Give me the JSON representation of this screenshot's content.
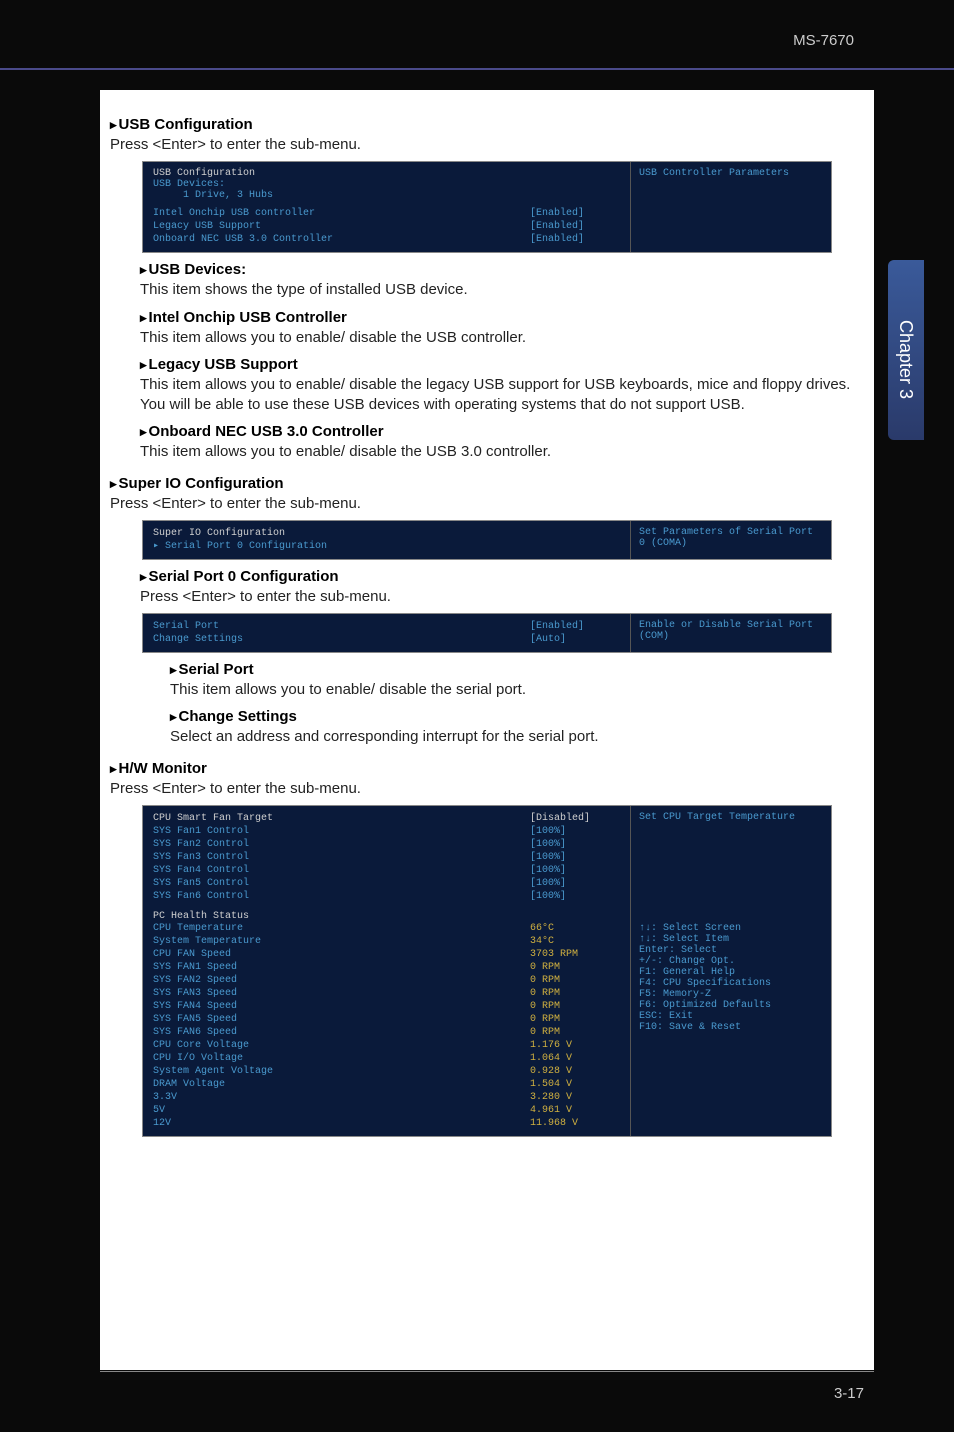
{
  "header": {
    "model": "MS-7670"
  },
  "sideTab": "Chapter 3",
  "footer": "3-17",
  "sections": {
    "usbConfig": {
      "title": "USB Configuration",
      "desc": "Press <Enter> to enter the sub-menu.",
      "bios": {
        "heading": "USB Configuration",
        "devicesLabel": "USB Devices:",
        "devicesValue": "1 Drive, 3 Hubs",
        "rows": [
          {
            "label": "Intel Onchip USB controller",
            "value": "[Enabled]"
          },
          {
            "label": "Legacy USB Support",
            "value": "[Enabled]"
          },
          {
            "label": "Onboard NEC USB 3.0 Controller",
            "value": "[Enabled]"
          }
        ],
        "help": "USB Controller Parameters"
      },
      "subs": {
        "usbDevices": {
          "title": "USB Devices:",
          "desc": "This item shows the type of installed USB device."
        },
        "intelOnchip": {
          "title": "Intel Onchip USB Controller",
          "desc": "This item allows you to enable/ disable the USB controller."
        },
        "legacy": {
          "title": "Legacy USB Support",
          "desc": "This item allows you to enable/ disable the legacy USB support for USB keyboards, mice and floppy drives. You will be able to use these USB devices with operating systems that do not support USB."
        },
        "nec": {
          "title": "Onboard NEC USB 3.0 Controller",
          "desc": "This item allows you to enable/ disable the USB 3.0 controller."
        }
      }
    },
    "superIO": {
      "title": "Super IO Configuration",
      "desc": "Press <Enter> to enter the sub-menu.",
      "bios": {
        "rows": [
          {
            "label": "Super IO Configuration",
            "value": "",
            "white": true
          },
          {
            "label": "Serial Port 0 Configuration",
            "value": "",
            "cyan": true,
            "arrow": true
          }
        ],
        "help": "Set Parameters of Serial Port 0 (COMA)"
      },
      "serialPort0": {
        "title": "Serial Port 0 Configuration",
        "desc": "Press <Enter> to enter the sub-menu.",
        "bios": {
          "rows": [
            {
              "label": "Serial Port",
              "value": "[Enabled]"
            },
            {
              "label": "Change Settings",
              "value": "[Auto]"
            }
          ],
          "help": "Enable or Disable Serial Port (COM)"
        },
        "subs": {
          "serialPort": {
            "title": "Serial Port",
            "desc": "This item allows you to enable/ disable the serial port."
          },
          "changeSettings": {
            "title": "Change Settings",
            "desc": "Select an address and corresponding interrupt for the serial port."
          }
        }
      }
    },
    "hwMonitor": {
      "title": "H/W Monitor",
      "desc": "Press <Enter> to enter the sub-menu.",
      "bios": {
        "rows": [
          {
            "label": "CPU Smart Fan Target",
            "value": "[Disabled]",
            "valWhite": true
          },
          {
            "label": "SYS Fan1 Control",
            "value": "[100%]"
          },
          {
            "label": "SYS Fan2 Control",
            "value": "[100%]"
          },
          {
            "label": "SYS Fan3 Control",
            "value": "[100%]"
          },
          {
            "label": "SYS Fan4 Control",
            "value": "[100%]"
          },
          {
            "label": "SYS Fan5 Control",
            "value": "[100%]"
          },
          {
            "label": "SYS Fan6 Control",
            "value": "[100%]"
          }
        ],
        "healthHeading": "PC Health Status",
        "health": [
          {
            "label": "CPU Temperature",
            "value": "66°C"
          },
          {
            "label": "System Temperature",
            "value": "34°C"
          },
          {
            "label": "CPU FAN Speed",
            "value": "3703 RPM"
          },
          {
            "label": "SYS FAN1 Speed",
            "value": "0 RPM"
          },
          {
            "label": "SYS FAN2 Speed",
            "value": "0 RPM"
          },
          {
            "label": "SYS FAN3 Speed",
            "value": "0 RPM"
          },
          {
            "label": "SYS FAN4 Speed",
            "value": "0 RPM"
          },
          {
            "label": "SYS FAN5 Speed",
            "value": "0 RPM"
          },
          {
            "label": "SYS FAN6 Speed",
            "value": "0 RPM"
          },
          {
            "label": "CPU Core Voltage",
            "value": "1.176 V"
          },
          {
            "label": "CPU I/O Voltage",
            "value": "1.064 V"
          },
          {
            "label": "System Agent Voltage",
            "value": "0.928 V"
          },
          {
            "label": "DRAM Voltage",
            "value": "1.504 V"
          },
          {
            "label": "3.3V",
            "value": "3.280 V"
          },
          {
            "label": "5V",
            "value": "4.961 V"
          },
          {
            "label": "12V",
            "value": "11.968 V"
          }
        ],
        "help": "Set CPU Target Temperature",
        "keys": [
          "↑↓: Select Screen",
          "↑↓: Select Item",
          "Enter: Select",
          "+/-: Change Opt.",
          "F1: General Help",
          "F4: CPU Specifications",
          "F5: Memory-Z",
          "F6: Optimized Defaults",
          "ESC: Exit",
          "F10: Save & Reset"
        ]
      }
    }
  }
}
